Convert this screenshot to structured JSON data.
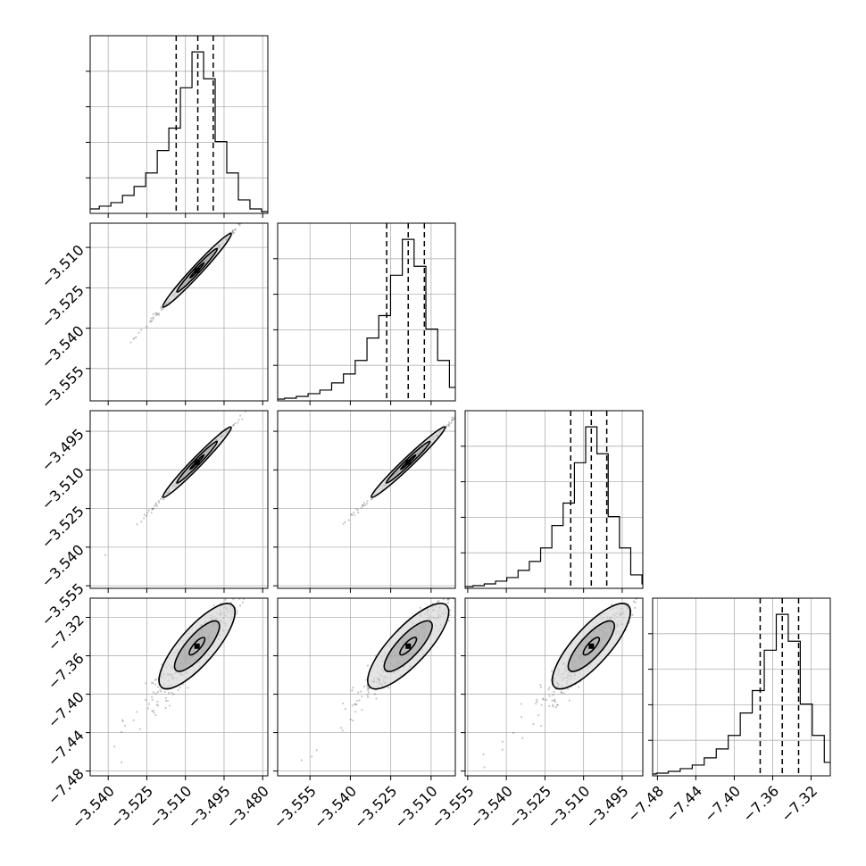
{
  "chart_data": {
    "type": "scatter",
    "kind": "corner-plot",
    "title": "",
    "n_params": 4,
    "params": [
      {
        "index": 0,
        "xlim": [
          -3.547,
          -3.478
        ],
        "ticks": [
          "−3.540",
          "−3.525",
          "−3.510",
          "−3.495",
          "−3.480"
        ],
        "tick_values": [
          -3.54,
          -3.525,
          -3.51,
          -3.495,
          -3.48
        ]
      },
      {
        "index": 1,
        "xlim": [
          -3.567,
          -3.501
        ],
        "ticks": [
          "−3.555",
          "−3.540",
          "−3.525",
          "−3.510"
        ],
        "tick_values": [
          -3.555,
          -3.54,
          -3.525,
          -3.51
        ]
      },
      {
        "index": 2,
        "xlim": [
          -3.556,
          -3.487
        ],
        "ticks": [
          "−3.555",
          "−3.540",
          "−3.525",
          "−3.510",
          "−3.495"
        ],
        "tick_values": [
          -3.555,
          -3.54,
          -3.525,
          -3.51,
          -3.495
        ]
      },
      {
        "index": 3,
        "xlim": [
          -7.485,
          -7.3
        ],
        "ticks": [
          "−7.48",
          "−7.44",
          "−7.40",
          "−7.36",
          "−7.32"
        ],
        "tick_values": [
          -7.48,
          -7.44,
          -7.4,
          -7.36,
          -7.32
        ]
      }
    ],
    "histograms": [
      {
        "param": 0,
        "quantiles": [
          -3.5136,
          -3.5052,
          -3.4992
        ],
        "counts": [
          0,
          1,
          2,
          3,
          5,
          8,
          12,
          20,
          30,
          45,
          70,
          95,
          140,
          180,
          150,
          80,
          45,
          15,
          5,
          2,
          1
        ]
      },
      {
        "param": 1,
        "quantiles": [
          -3.5265,
          -3.5185,
          -3.5125
        ],
        "counts": [
          0,
          1,
          2,
          3,
          5,
          8,
          12,
          20,
          30,
          45,
          70,
          95,
          140,
          180,
          150,
          80,
          45,
          15,
          5,
          2,
          1
        ]
      },
      {
        "param": 2,
        "quantiles": [
          -3.515,
          -3.507,
          -3.501
        ],
        "counts": [
          0,
          1,
          2,
          3,
          5,
          8,
          12,
          20,
          30,
          45,
          70,
          95,
          140,
          180,
          150,
          80,
          45,
          15,
          5,
          2,
          1
        ]
      },
      {
        "param": 3,
        "quantiles": [
          -7.373,
          -7.35,
          -7.333
        ],
        "counts": [
          0,
          1,
          2,
          3,
          5,
          8,
          12,
          20,
          30,
          45,
          70,
          95,
          140,
          180,
          150,
          80,
          45,
          15,
          5,
          2,
          1
        ]
      }
    ],
    "pairs": [
      {
        "row": 1,
        "col": 0,
        "x_mean": -3.5055,
        "y_mean": -3.5185,
        "x_sd": 0.006,
        "y_sd": 0.0062,
        "corr": 0.998
      },
      {
        "row": 2,
        "col": 0,
        "x_mean": -3.5055,
        "y_mean": -3.507,
        "x_sd": 0.006,
        "y_sd": 0.0062,
        "corr": 0.998
      },
      {
        "row": 2,
        "col": 1,
        "x_mean": -3.5185,
        "y_mean": -3.507,
        "x_sd": 0.0062,
        "y_sd": 0.0062,
        "corr": 0.998
      },
      {
        "row": 3,
        "col": 0,
        "x_mean": -3.5055,
        "y_mean": -7.35,
        "x_sd": 0.006,
        "y_sd": 0.02,
        "corr": 0.93
      },
      {
        "row": 3,
        "col": 1,
        "x_mean": -3.5185,
        "y_mean": -7.35,
        "x_sd": 0.0062,
        "y_sd": 0.02,
        "corr": 0.93
      },
      {
        "row": 3,
        "col": 2,
        "x_mean": -3.507,
        "y_mean": -7.35,
        "x_sd": 0.0062,
        "y_sd": 0.02,
        "corr": 0.93
      }
    ],
    "grid": true,
    "xlabel": "",
    "ylabel": ""
  }
}
